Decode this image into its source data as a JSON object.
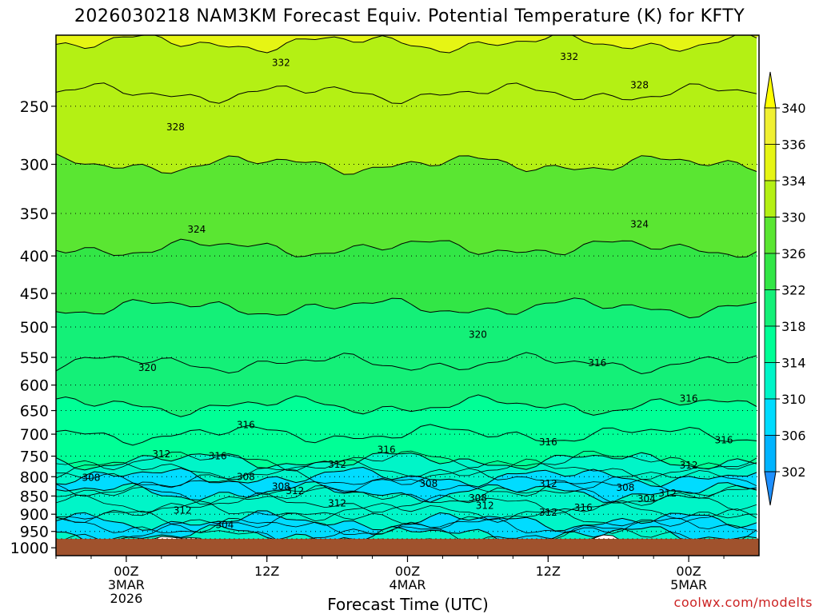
{
  "chart_data": {
    "type": "heatmap",
    "title": "2026030218 NAM3KM Forecast Equiv. Potential Temperature (K) for KFTY",
    "xlabel": "Forecast Time (UTC)",
    "ylabel": "",
    "y_scale": "log",
    "y_reversed": true,
    "y_ticks": [
      250,
      300,
      350,
      400,
      450,
      500,
      550,
      600,
      650,
      700,
      750,
      800,
      850,
      900,
      950,
      1000
    ],
    "y_tick_labels": [
      "250",
      "300",
      "350",
      "400",
      "450",
      "500",
      "550",
      "600",
      "650",
      "700",
      "750",
      "800",
      "850",
      "900",
      "950",
      "1000"
    ],
    "ylim": [
      200,
      1025
    ],
    "grid": "dotted horizontal at pressure levels",
    "x_ticks": [
      {
        "label": "00Z",
        "sub": "3MAR",
        "year": "2026"
      },
      {
        "label": "12Z",
        "sub": "",
        "year": ""
      },
      {
        "label": "00Z",
        "sub": "4MAR",
        "year": ""
      },
      {
        "label": "12Z",
        "sub": "",
        "year": ""
      },
      {
        "label": "00Z",
        "sub": "5MAR",
        "year": ""
      }
    ],
    "colorbar": {
      "levels": [
        302,
        306,
        310,
        314,
        318,
        322,
        326,
        330,
        334,
        336,
        340
      ],
      "tick_labels": [
        "302",
        "306",
        "310",
        "314",
        "318",
        "322",
        "326",
        "330",
        "334",
        "336",
        "340"
      ],
      "colors": [
        "#1e90ff",
        "#00b4ff",
        "#00dcff",
        "#00f5c8",
        "#00ff96",
        "#14f078",
        "#32e646",
        "#5ae632",
        "#b4f014",
        "#e6f514",
        "#f0f032",
        "#ffff00"
      ]
    },
    "bands": [
      {
        "theta": 334,
        "p_top": 200,
        "p_bot": 205
      },
      {
        "theta": 332,
        "p_top": 205,
        "p_bot": 240
      },
      {
        "theta": 330,
        "p_top": 240,
        "p_bot": 300
      },
      {
        "theta": 326,
        "p_top": 300,
        "p_bot": 390
      },
      {
        "theta": 323,
        "p_top": 390,
        "p_bot": 470
      },
      {
        "theta": 321,
        "p_top": 470,
        "p_bot": 560
      },
      {
        "theta": 318,
        "p_top": 560,
        "p_bot": 640
      },
      {
        "theta": 316,
        "p_top": 640,
        "p_bot": 700
      },
      {
        "theta": 314,
        "p_top": 700,
        "p_bot": 760
      },
      {
        "theta": 310,
        "p_top": 760,
        "p_bot": 800
      },
      {
        "theta": 306,
        "p_top": 800,
        "p_bot": 840
      },
      {
        "theta": 310,
        "p_top": 840,
        "p_bot": 920
      },
      {
        "theta": 306,
        "p_top": 920,
        "p_bot": 960
      },
      {
        "theta": 310,
        "p_top": 960,
        "p_bot": 990
      }
    ],
    "contour_labels": [
      {
        "text": "332",
        "x": 0.32,
        "p": 218
      },
      {
        "text": "332",
        "x": 0.73,
        "p": 214
      },
      {
        "text": "328",
        "x": 0.83,
        "p": 234
      },
      {
        "text": "328",
        "x": 0.17,
        "p": 267
      },
      {
        "text": "324",
        "x": 0.2,
        "p": 368
      },
      {
        "text": "324",
        "x": 0.83,
        "p": 362
      },
      {
        "text": "320",
        "x": 0.13,
        "p": 568
      },
      {
        "text": "320",
        "x": 0.6,
        "p": 512
      },
      {
        "text": "316",
        "x": 0.77,
        "p": 560
      },
      {
        "text": "316",
        "x": 0.9,
        "p": 626
      },
      {
        "text": "316",
        "x": 0.27,
        "p": 680
      },
      {
        "text": "316",
        "x": 0.47,
        "p": 735
      },
      {
        "text": "316",
        "x": 0.7,
        "p": 718
      },
      {
        "text": "316",
        "x": 0.95,
        "p": 713
      },
      {
        "text": "316",
        "x": 0.23,
        "p": 750
      },
      {
        "text": "316",
        "x": 0.75,
        "p": 882
      },
      {
        "text": "312",
        "x": 0.15,
        "p": 745
      },
      {
        "text": "312",
        "x": 0.4,
        "p": 770
      },
      {
        "text": "312",
        "x": 0.7,
        "p": 818
      },
      {
        "text": "312",
        "x": 0.9,
        "p": 772
      },
      {
        "text": "312",
        "x": 0.34,
        "p": 836
      },
      {
        "text": "312",
        "x": 0.4,
        "p": 870
      },
      {
        "text": "312",
        "x": 0.61,
        "p": 876
      },
      {
        "text": "312",
        "x": 0.7,
        "p": 895
      },
      {
        "text": "312",
        "x": 0.87,
        "p": 843
      },
      {
        "text": "312",
        "x": 0.18,
        "p": 890
      },
      {
        "text": "308",
        "x": 0.05,
        "p": 802
      },
      {
        "text": "308",
        "x": 0.27,
        "p": 800
      },
      {
        "text": "308",
        "x": 0.32,
        "p": 825
      },
      {
        "text": "308",
        "x": 0.53,
        "p": 818
      },
      {
        "text": "308",
        "x": 0.6,
        "p": 855
      },
      {
        "text": "308",
        "x": 0.81,
        "p": 828
      },
      {
        "text": "304",
        "x": 0.84,
        "p": 858
      },
      {
        "text": "304",
        "x": 0.24,
        "p": 930
      }
    ]
  }
}
